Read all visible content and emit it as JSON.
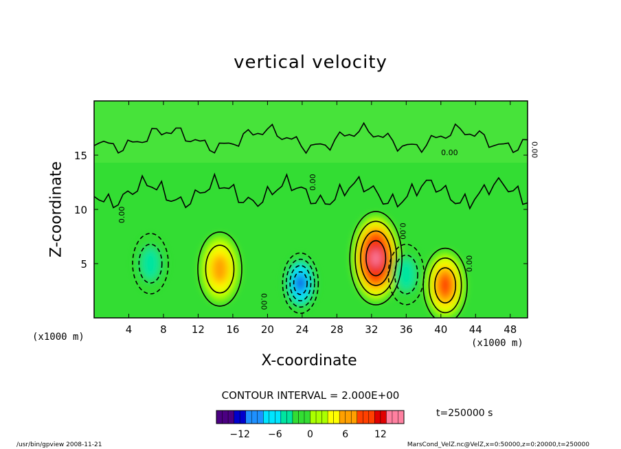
{
  "chart_data": {
    "type": "heatmap",
    "title": "vertical velocity",
    "xlabel": "X-coordinate",
    "ylabel": "Z-coordinate",
    "x_unit": "(x1000 m)",
    "y_unit": "(x1000 m)",
    "xlim": [
      0,
      50
    ],
    "ylim": [
      0,
      20
    ],
    "x_ticks": [
      "4",
      "8",
      "12",
      "16",
      "20",
      "24",
      "28",
      "32",
      "36",
      "40",
      "44",
      "48"
    ],
    "y_ticks": [
      "5",
      "10",
      "15"
    ],
    "contour_interval_label": "CONTOUR INTERVAL = 2.000E+00",
    "contour_labels": [
      "0.00",
      "0.00",
      "0.00",
      "0.00",
      "0.00",
      "0.00",
      "0.00"
    ],
    "colorbar": {
      "range": [
        -16,
        16
      ],
      "ticks": [
        "−12",
        "−6",
        "0",
        "6",
        "12"
      ],
      "colors": [
        "#4b0082",
        "#0000cd",
        "#1e90ff",
        "#00e5ff",
        "#00e5a0",
        "#33dd33",
        "#aaff00",
        "#ffff00",
        "#ffa000",
        "#ff4000",
        "#e00000",
        "#ff80a0"
      ]
    },
    "features": [
      {
        "label": "updraft",
        "x": 32.5,
        "z": 5.5,
        "peak": 14
      },
      {
        "label": "updraft",
        "x": 40.5,
        "z": 3.0,
        "peak": 8
      },
      {
        "label": "updraft",
        "x": 14.5,
        "z": 4.5,
        "peak": 6
      },
      {
        "label": "downdraft",
        "x": 23.8,
        "z": 3.2,
        "peak": -12
      },
      {
        "label": "downdraft",
        "x": 36.0,
        "z": 4.0,
        "peak": -4
      },
      {
        "label": "downdraft",
        "x": 6.5,
        "z": 5.0,
        "peak": -4
      }
    ],
    "time_label": "t=250000 s"
  },
  "footer": {
    "left": "/usr/bin/gpview   2008-11-21",
    "right": "MarsCond_VelZ.nc@VelZ,x=0:50000,z=0:20000,t=250000"
  }
}
